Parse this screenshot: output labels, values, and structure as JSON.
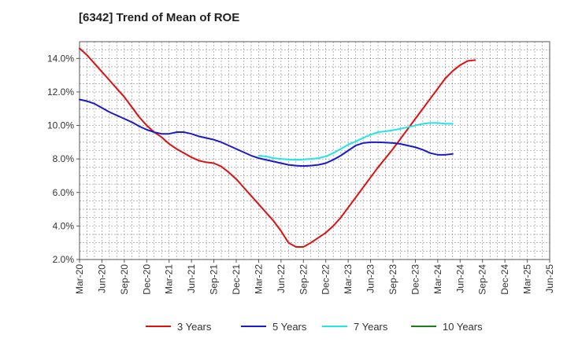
{
  "chart_data": {
    "type": "line",
    "title": "[6342]  Trend of Mean of ROE",
    "xlabel": "",
    "ylabel": "",
    "ylim": [
      2.0,
      15.0
    ],
    "y_ticks": [
      2.0,
      4.0,
      6.0,
      8.0,
      10.0,
      12.0,
      14.0
    ],
    "y_tick_labels": [
      "2.0%",
      "4.0%",
      "6.0%",
      "8.0%",
      "10.0%",
      "12.0%",
      "14.0%"
    ],
    "x_ticks": [
      0,
      3,
      6,
      9,
      12,
      15,
      18,
      21,
      24,
      27,
      30,
      33,
      36,
      39,
      42,
      45,
      48,
      51,
      54,
      57,
      60,
      63
    ],
    "x_tick_labels": [
      "Mar-20",
      "Jun-20",
      "Sep-20",
      "Dec-20",
      "Mar-21",
      "Jun-21",
      "Sep-21",
      "Dec-21",
      "Mar-22",
      "Jun-22",
      "Sep-22",
      "Dec-22",
      "Mar-23",
      "Jun-23",
      "Sep-23",
      "Dec-23",
      "Mar-24",
      "Jun-24",
      "Sep-24",
      "Dec-24",
      "Mar-25",
      "Jun-25"
    ],
    "x_range": [
      0,
      63
    ],
    "grid": true,
    "legend_position": "bottom",
    "series": [
      {
        "name": "3 Years",
        "color": "#dd1111",
        "x": [
          0,
          1,
          2,
          3,
          4,
          5,
          6,
          7,
          8,
          9,
          10,
          11,
          12,
          13,
          14,
          15,
          16,
          17,
          18,
          19,
          20,
          21,
          22,
          23,
          24,
          25,
          26,
          27,
          28,
          29,
          30,
          31,
          32,
          33,
          34,
          35,
          36,
          37,
          38,
          39,
          40,
          41,
          42,
          43,
          44,
          45,
          46,
          47,
          48,
          49,
          50,
          51,
          52,
          53,
          54,
          55,
          56,
          57,
          58,
          59,
          60
        ],
        "values": [
          14.6,
          14.2,
          13.7,
          13.2,
          12.7,
          12.2,
          11.7,
          11.1,
          10.5,
          10.0,
          9.6,
          9.3,
          8.9,
          8.6,
          8.35,
          8.1,
          7.9,
          7.8,
          7.75,
          7.55,
          7.2,
          6.8,
          6.3,
          5.8,
          5.3,
          4.8,
          4.3,
          3.7,
          3.0,
          2.75,
          2.75,
          3.0,
          3.3,
          3.6,
          4.0,
          4.5,
          5.1,
          5.7,
          6.3,
          6.9,
          7.5,
          8.05,
          8.6,
          9.2,
          9.8,
          10.4,
          11.0,
          11.6,
          12.2,
          12.8,
          13.25,
          13.6,
          13.85,
          13.9,
          null,
          null,
          null,
          null,
          null,
          null,
          null
        ]
      },
      {
        "name": "5 Years",
        "color": "#1a1acc",
        "x": [
          0,
          1,
          2,
          3,
          4,
          5,
          6,
          7,
          8,
          9,
          10,
          11,
          12,
          13,
          14,
          15,
          16,
          17,
          18,
          19,
          20,
          21,
          22,
          23,
          24,
          25,
          26,
          27,
          28,
          29,
          30,
          31,
          32,
          33,
          34,
          35,
          36,
          37,
          38,
          39,
          40,
          41,
          42,
          43,
          44,
          45,
          46,
          47,
          48,
          49,
          50,
          51,
          52,
          53
        ],
        "values": [
          11.55,
          11.45,
          11.3,
          11.05,
          10.8,
          10.6,
          10.4,
          10.2,
          9.95,
          9.75,
          9.6,
          9.5,
          9.5,
          9.6,
          9.6,
          9.5,
          9.35,
          9.25,
          9.15,
          9.0,
          8.8,
          8.6,
          8.4,
          8.2,
          8.05,
          7.95,
          7.85,
          7.75,
          7.65,
          7.6,
          7.58,
          7.6,
          7.65,
          7.75,
          7.95,
          8.2,
          8.5,
          8.8,
          8.95,
          9.0,
          9.0,
          8.98,
          8.95,
          8.9,
          8.8,
          8.7,
          8.55,
          8.35,
          8.25,
          8.25,
          8.3,
          null,
          null,
          null
        ]
      },
      {
        "name": "7 Years",
        "color": "#22e5e5",
        "x": [
          24,
          25,
          26,
          27,
          28,
          29,
          30,
          31,
          32,
          33,
          34,
          35,
          36,
          37,
          38,
          39,
          40,
          41,
          42,
          43,
          44,
          45,
          46,
          47,
          48,
          49,
          50,
          51,
          52,
          53
        ],
        "values": [
          8.2,
          8.15,
          8.05,
          8.0,
          7.97,
          7.95,
          7.97,
          8.0,
          8.05,
          8.15,
          8.35,
          8.6,
          8.85,
          9.05,
          9.25,
          9.45,
          9.6,
          9.65,
          9.72,
          9.8,
          9.9,
          10.0,
          10.1,
          10.15,
          10.15,
          10.1,
          10.1,
          null,
          null,
          null
        ]
      },
      {
        "name": "10 Years",
        "color": "#1e7d1e",
        "x": [],
        "values": []
      }
    ]
  }
}
